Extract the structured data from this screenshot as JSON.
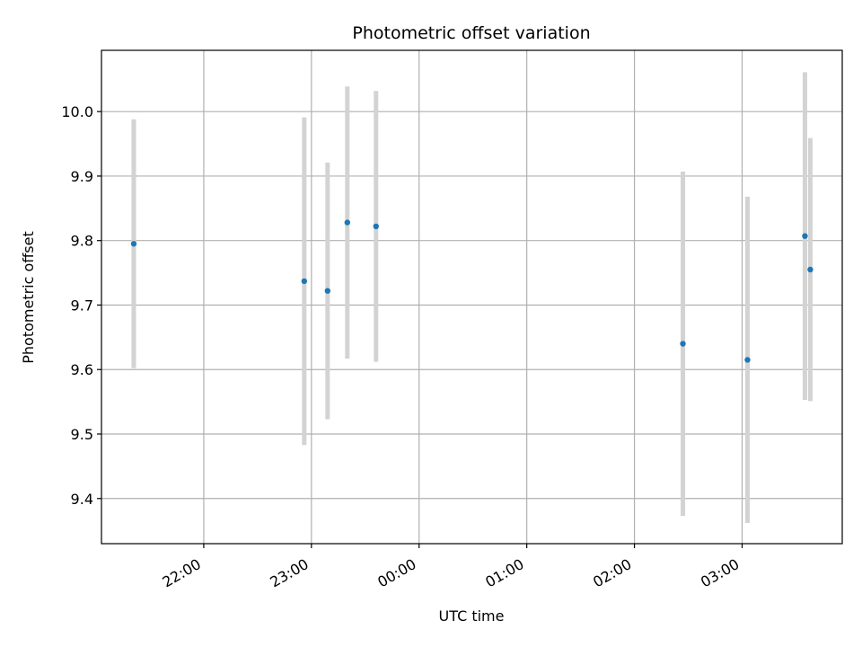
{
  "chart_data": {
    "type": "scatter",
    "title": "Photometric offset variation",
    "xlabel": "UTC time",
    "ylabel": "Photometric offset",
    "x_tick_labels": [
      "22:00",
      "23:00",
      "00:00",
      "01:00",
      "02:00",
      "03:00"
    ],
    "x_tick_hours": [
      22,
      23,
      24,
      25,
      26,
      27
    ],
    "xlim_hours": [
      21.05,
      27.93
    ],
    "ylim": [
      9.33,
      10.095
    ],
    "y_ticks": [
      9.4,
      9.5,
      9.6,
      9.7,
      9.8,
      9.9,
      10.0
    ],
    "grid": true,
    "marker_color": "#1f77b4",
    "errorbar_color": "#d3d3d3",
    "points": [
      {
        "time": "21:21",
        "y": 9.795,
        "err": 0.193
      },
      {
        "time": "22:56",
        "y": 9.737,
        "err": 0.254
      },
      {
        "time": "23:09",
        "y": 9.722,
        "err": 0.199
      },
      {
        "time": "23:20",
        "y": 9.828,
        "err": 0.211
      },
      {
        "time": "23:36",
        "y": 9.822,
        "err": 0.21
      },
      {
        "time": "02:27",
        "y": 9.64,
        "err": 0.267
      },
      {
        "time": "03:03",
        "y": 9.615,
        "err": 0.253
      },
      {
        "time": "03:35",
        "y": 9.807,
        "err": 0.254
      },
      {
        "time": "03:38",
        "y": 9.755,
        "err": 0.204
      }
    ]
  }
}
